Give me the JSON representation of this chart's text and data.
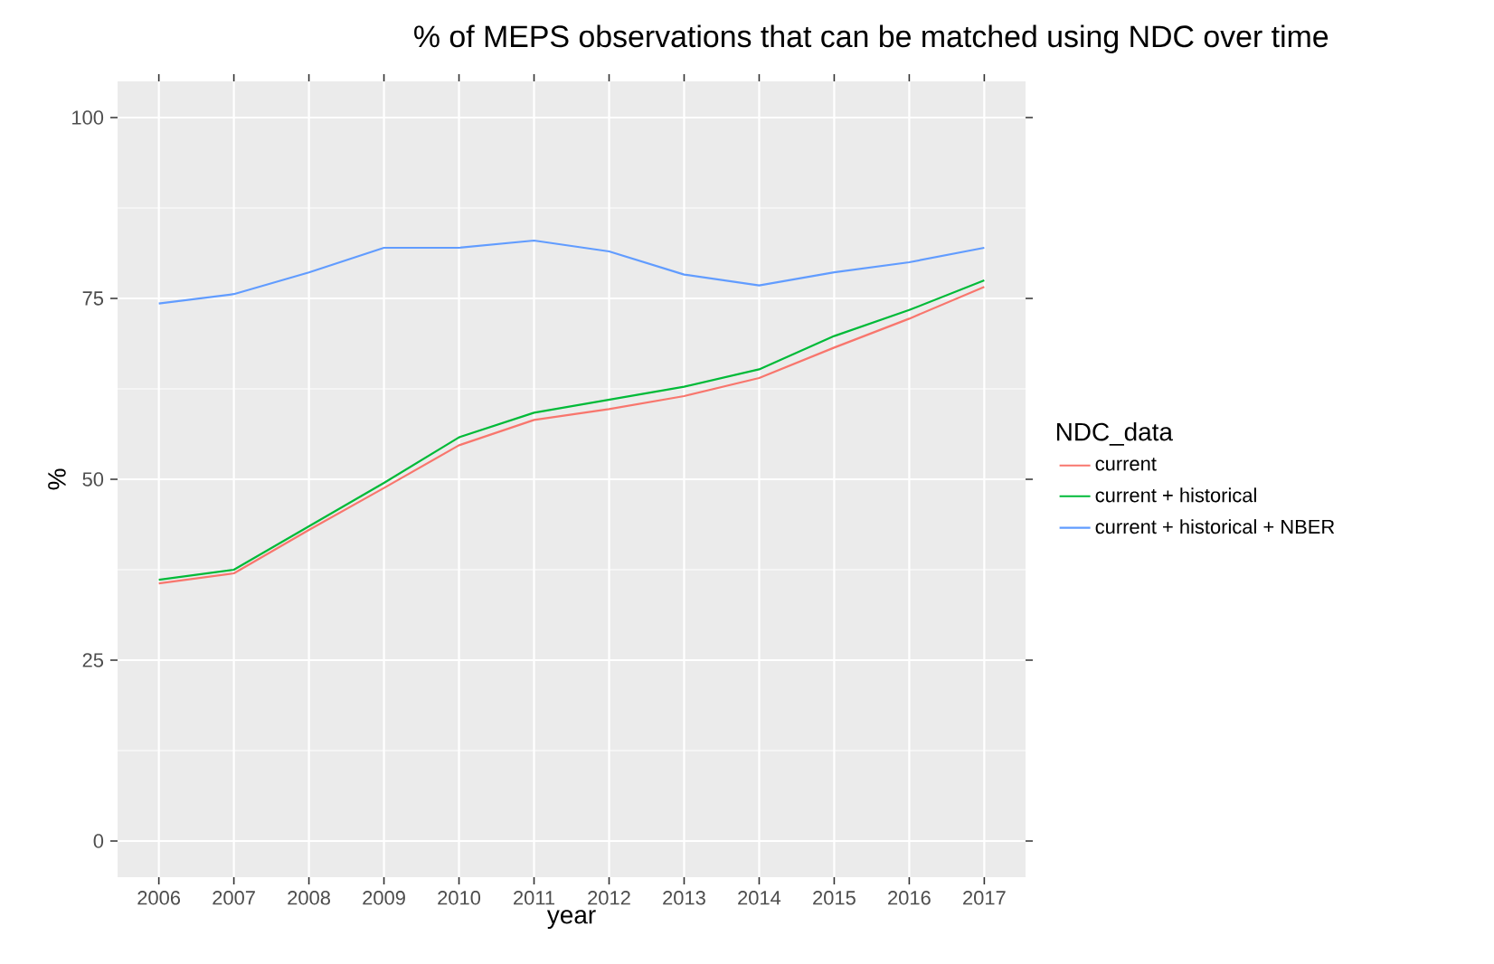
{
  "chart_data": {
    "type": "line",
    "title": "% of MEPS observations that can be matched using NDC over time",
    "xlabel": "year",
    "ylabel": "%",
    "legend_title": "NDC_data",
    "x": [
      2006,
      2007,
      2008,
      2009,
      2010,
      2011,
      2012,
      2013,
      2014,
      2015,
      2016,
      2017
    ],
    "series": [
      {
        "name": "current",
        "color": "#F8766D",
        "values": [
          35.6,
          37,
          43,
          48.8,
          54.7,
          58.2,
          59.7,
          61.5,
          64,
          68.2,
          72.2,
          76.6
        ]
      },
      {
        "name": "current + historical",
        "color": "#00BA38",
        "values": [
          36.1,
          37.5,
          43.5,
          49.5,
          55.8,
          59.2,
          61,
          62.8,
          65.2,
          69.8,
          73.4,
          77.5
        ]
      },
      {
        "name": "current + historical + NBER",
        "color": "#619CFF",
        "values": [
          74.3,
          75.6,
          78.6,
          82,
          82,
          83,
          81.5,
          78.3,
          76.8,
          78.6,
          80,
          82
        ]
      }
    ],
    "xlim": [
      2005.45,
      2017.55
    ],
    "ylim": [
      -5,
      105
    ],
    "xticks": [
      2006,
      2007,
      2008,
      2009,
      2010,
      2011,
      2012,
      2013,
      2014,
      2015,
      2016,
      2017
    ],
    "yticks": [
      0,
      25,
      50,
      75,
      100
    ],
    "grid": true,
    "legend": "right",
    "marker": "none",
    "line_style": "solid"
  }
}
